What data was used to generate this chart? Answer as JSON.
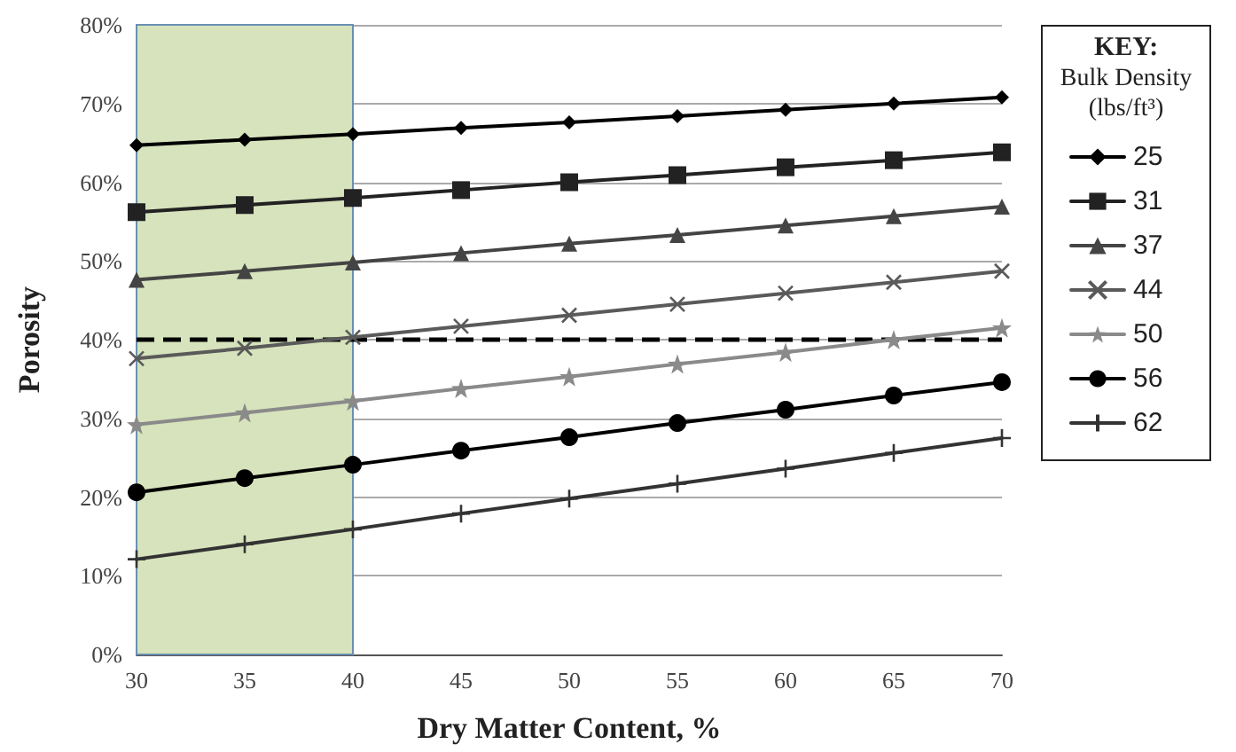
{
  "chart_data": {
    "type": "line",
    "xlabel": "Dry Matter Content, %",
    "ylabel": "Porosity",
    "legend_title": "KEY:\nBulk Density\n(lbs/ft³)",
    "x": [
      30,
      35,
      40,
      45,
      50,
      55,
      60,
      65,
      70
    ],
    "series": [
      {
        "name": "25",
        "color": "#000000",
        "marker": "diamond",
        "values": [
          64.7,
          65.4,
          66.1,
          66.9,
          67.6,
          68.4,
          69.2,
          70.0,
          70.8
        ]
      },
      {
        "name": "31",
        "color": "#222222",
        "marker": "square",
        "values": [
          56.2,
          57.1,
          58.0,
          59.0,
          60.0,
          60.9,
          61.9,
          62.8,
          63.8
        ]
      },
      {
        "name": "37",
        "color": "#444444",
        "marker": "triangle",
        "values": [
          47.6,
          48.7,
          49.8,
          51.0,
          52.2,
          53.3,
          54.5,
          55.7,
          56.9
        ]
      },
      {
        "name": "44",
        "color": "#5a5a5a",
        "marker": "cross",
        "values": [
          37.6,
          38.9,
          40.3,
          41.7,
          43.1,
          44.5,
          45.9,
          47.3,
          48.7
        ]
      },
      {
        "name": "50",
        "color": "#8a8a8a",
        "marker": "star",
        "values": [
          29.2,
          30.7,
          32.2,
          33.8,
          35.3,
          36.9,
          38.4,
          40.0,
          41.5
        ]
      },
      {
        "name": "56",
        "color": "#000000",
        "marker": "circle",
        "values": [
          20.6,
          22.4,
          24.1,
          25.9,
          27.6,
          29.4,
          31.1,
          32.9,
          34.6
        ]
      },
      {
        "name": "62",
        "color": "#333333",
        "marker": "plus",
        "values": [
          12.1,
          14.0,
          15.9,
          17.9,
          19.8,
          21.7,
          23.6,
          25.6,
          27.5
        ]
      }
    ],
    "xlim": [
      30,
      70
    ],
    "xticks": [
      30,
      35,
      40,
      45,
      50,
      55,
      60,
      65,
      70
    ],
    "ylim": [
      0,
      80
    ],
    "yticks": [
      {
        "value": 0,
        "label": "0%"
      },
      {
        "value": 10,
        "label": "10%"
      },
      {
        "value": 20,
        "label": "20%"
      },
      {
        "value": 30,
        "label": "30%"
      },
      {
        "value": 40,
        "label": "40%"
      },
      {
        "value": 50,
        "label": "50%"
      },
      {
        "value": 60,
        "label": "60%"
      },
      {
        "value": 70,
        "label": "70%"
      },
      {
        "value": 80,
        "label": "80%"
      }
    ],
    "ref_lines": [
      {
        "axis": "y",
        "value": 40,
        "color": "#000000",
        "line_style": "dashed"
      }
    ],
    "bands": [
      {
        "axis": "x",
        "from": 30,
        "to": 40,
        "color": "#d6e3bc"
      }
    ],
    "grid": "y",
    "legend": "right",
    "line_style": "solid"
  }
}
